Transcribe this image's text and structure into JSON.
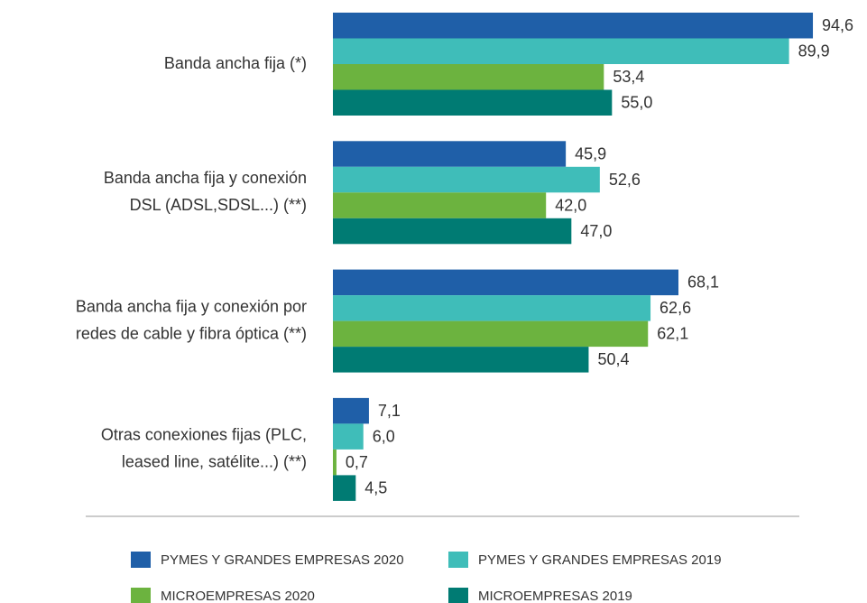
{
  "chart_data": {
    "type": "hbar",
    "categories": [
      [
        "Banda ancha fija (*)"
      ],
      [
        "Banda ancha fija y conexión",
        "DSL (ADSL,SDSL...) (**)"
      ],
      [
        "Banda ancha fija y conexión por",
        "redes de cable y fibra óptica (**)"
      ],
      [
        "Otras conexiones fijas (PLC,",
        "leased line, satélite...) (**)"
      ]
    ],
    "series": [
      {
        "name": "PYMES Y GRANDES EMPRESAS 2020",
        "color": "#1f5fa8",
        "values": [
          94.6,
          45.9,
          68.1,
          7.1
        ],
        "value_labels": [
          "94,6",
          "45,9",
          "68,1",
          "7,1"
        ]
      },
      {
        "name": "PYMES Y GRANDES EMPRESAS 2019",
        "color": "#3fbdb9",
        "values": [
          89.9,
          52.6,
          62.6,
          6.0
        ],
        "value_labels": [
          "89,9",
          "52,6",
          "62,6",
          "6,0"
        ]
      },
      {
        "name": "MICROEMPRESAS 2020",
        "color": "#6cb33f",
        "values": [
          53.4,
          42.0,
          62.1,
          0.7
        ],
        "value_labels": [
          "53,4",
          "42,0",
          "62,1",
          "0,7"
        ]
      },
      {
        "name": "MICROEMPRESAS 2019",
        "color": "#007b73",
        "values": [
          55.0,
          47.0,
          50.4,
          4.5
        ],
        "value_labels": [
          "55,0",
          "47,0",
          "50,4",
          "4,5"
        ]
      }
    ],
    "legend": "bottom"
  }
}
